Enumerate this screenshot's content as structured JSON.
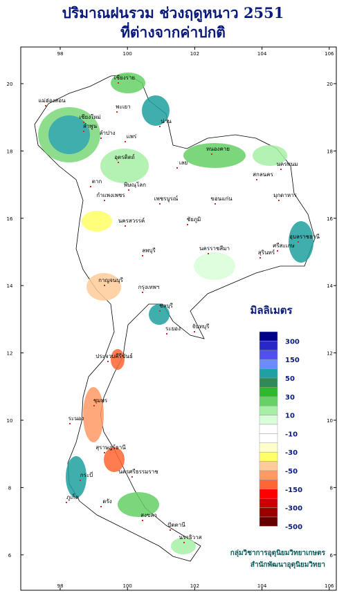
{
  "header": {
    "title": "ปริมาณฝนรวม ช่วงฤดูหนาว 2551",
    "subtitle": "ที่ต่างจากค่าปกติ"
  },
  "map": {
    "lon_ticks": [
      98,
      100,
      102,
      104,
      106
    ],
    "lat_ticks": [
      20,
      18,
      16,
      14,
      12,
      10,
      8,
      6
    ],
    "provinces": [
      "เชียงราย",
      "แม่ฮ่องสอน",
      "พะเยา",
      "เชียงใหม่",
      "ลำพูน",
      "น่าน",
      "ลำปาง",
      "แพร่",
      "อุตรดิตถ์",
      "ตาก",
      "พิษณุโลก",
      "กำแพงเพชร",
      "เพชรบูรณ์",
      "เลย",
      "หนองคาย",
      "นครพนม",
      "สกลนคร",
      "มุกดาหาร",
      "ขอนแก่น",
      "ชัยภูมิ",
      "นครสวรรค์",
      "ลพบุรี",
      "นครราชสีมา",
      "สุรินทร์",
      "อุบลราชธานี",
      "ศรีสะเกษ",
      "กาญจนบุรี",
      "กรุงเทพฯ",
      "ชลบุรี",
      "ระยอง",
      "จันทบุรี",
      "ประจวบคีรีขันธ์",
      "ชุมพร",
      "ระนอง",
      "สุราษฎร์ธานี",
      "นครศรีธรรมราช",
      "ภูเก็ต",
      "กระบี่",
      "ตรัง",
      "สงขลา",
      "ปัตตานี",
      "นราธิวาส"
    ]
  },
  "legend": {
    "title": "มิลลิเมตร",
    "labels": [
      300,
      150,
      50,
      30,
      10,
      -10,
      -30,
      -50,
      -150,
      -300,
      -500
    ],
    "colors": [
      "#00008b",
      "#2828c8",
      "#5050f0",
      "#6a8cff",
      "#20a0a0",
      "#2e8b57",
      "#2eb82e",
      "#66d166",
      "#a6f0a6",
      "#d8ffd8",
      "#ffffff",
      "#ffffff",
      "#ffffcc",
      "#ffff66",
      "#ffcc99",
      "#ff9966",
      "#ff6633",
      "#ff0000",
      "#cc0000",
      "#990000",
      "#660000"
    ]
  },
  "footer": {
    "line1": "กลุ่มวิชาการอุตุนิยมวิทยาเกษตร",
    "line2": "สำนักพัฒนาอุตุนิยมวิทยา"
  }
}
